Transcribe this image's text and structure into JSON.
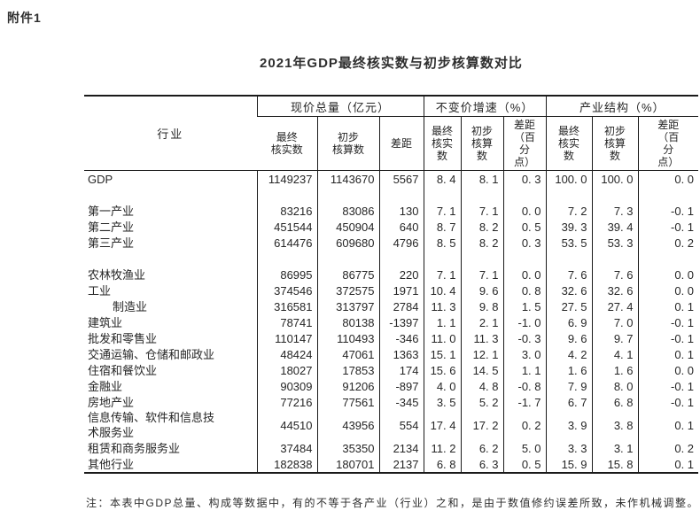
{
  "attachment_label": "附件1",
  "title": "2021年GDP最终核实数与初步核算数对比",
  "note": "注：本表中GDP总量、构成等数据中，有的不等于各产业（行业）之和，是由于数值修约误差所致，未作机械调整。",
  "table": {
    "corner_header": "行业",
    "groups": [
      {
        "label": "现价总量（亿元）",
        "sub": [
          "最终\n核实数",
          "初步\n核算数",
          "差距"
        ]
      },
      {
        "label": "不变价增速（%）",
        "sub": [
          "最终\n核实\n数",
          "初步\n核算\n数",
          "差距\n（百\n分\n点）"
        ]
      },
      {
        "label": "产业结构（%）",
        "sub": [
          "最终\n核实\n数",
          "初步\n核算\n数",
          "差距\n（百\n分\n点）"
        ]
      }
    ],
    "rows": [
      {
        "label": "GDP",
        "values": [
          "1149237",
          "1143670",
          "5567",
          "8. 4",
          "8. 1",
          "0. 3",
          "100. 0",
          "100. 0",
          "0. 0"
        ]
      },
      {
        "blank": true
      },
      {
        "label": "第一产业",
        "values": [
          "83216",
          "83086",
          "130",
          "7. 1",
          "7. 1",
          "0. 0",
          "7. 2",
          "7. 3",
          "-0. 1"
        ]
      },
      {
        "label": "第二产业",
        "values": [
          "451544",
          "450904",
          "640",
          "8. 7",
          "8. 2",
          "0. 5",
          "39. 3",
          "39. 4",
          "-0. 1"
        ]
      },
      {
        "label": "第三产业",
        "values": [
          "614476",
          "609680",
          "4796",
          "8. 5",
          "8. 2",
          "0. 3",
          "53. 5",
          "53. 3",
          "0. 2"
        ]
      },
      {
        "blank": true
      },
      {
        "label": "农林牧渔业",
        "values": [
          "86995",
          "86775",
          "220",
          "7. 1",
          "7. 1",
          "0. 0",
          "7. 6",
          "7. 6",
          "0. 0"
        ]
      },
      {
        "label": "工业",
        "values": [
          "374546",
          "372575",
          "1971",
          "10. 4",
          "9. 6",
          "0. 8",
          "32. 6",
          "32. 6",
          "0. 0"
        ]
      },
      {
        "label": "制造业",
        "indent": true,
        "values": [
          "316581",
          "313797",
          "2784",
          "11. 3",
          "9. 8",
          "1. 5",
          "27. 5",
          "27. 4",
          "0. 1"
        ]
      },
      {
        "label": "建筑业",
        "values": [
          "78741",
          "80138",
          "-1397",
          "1. 1",
          "2. 1",
          "-1. 0",
          "6. 9",
          "7. 0",
          "-0. 1"
        ]
      },
      {
        "label": "批发和零售业",
        "values": [
          "110147",
          "110493",
          "-346",
          "11. 0",
          "11. 3",
          "-0. 3",
          "9. 6",
          "9. 7",
          "-0. 1"
        ]
      },
      {
        "label": "交通运输、仓储和邮政业",
        "values": [
          "48424",
          "47061",
          "1363",
          "15. 1",
          "12. 1",
          "3. 0",
          "4. 2",
          "4. 1",
          "0. 1"
        ]
      },
      {
        "label": "住宿和餐饮业",
        "values": [
          "18027",
          "17853",
          "174",
          "15. 6",
          "14. 5",
          "1. 1",
          "1. 6",
          "1. 6",
          "0. 0"
        ]
      },
      {
        "label": "金融业",
        "values": [
          "90309",
          "91206",
          "-897",
          "4. 0",
          "4. 8",
          "-0. 8",
          "7. 9",
          "8. 0",
          "-0. 1"
        ]
      },
      {
        "label": "房地产业",
        "values": [
          "77216",
          "77561",
          "-345",
          "3. 5",
          "5. 2",
          "-1. 7",
          "6. 7",
          "6. 8",
          "-0. 1"
        ]
      },
      {
        "label": "信息传输、软件和信息技\n术服务业",
        "values": [
          "44510",
          "43956",
          "554",
          "17. 4",
          "17. 2",
          "0. 2",
          "3. 9",
          "3. 8",
          "0. 1"
        ]
      },
      {
        "label": "租赁和商务服务业",
        "values": [
          "37484",
          "35350",
          "2134",
          "11. 2",
          "6. 2",
          "5. 0",
          "3. 3",
          "3. 1",
          "0. 2"
        ]
      },
      {
        "label": "其他行业",
        "values": [
          "182838",
          "180701",
          "2137",
          "6. 8",
          "6. 3",
          "0. 5",
          "15. 9",
          "15. 8",
          "0. 1"
        ]
      }
    ]
  }
}
